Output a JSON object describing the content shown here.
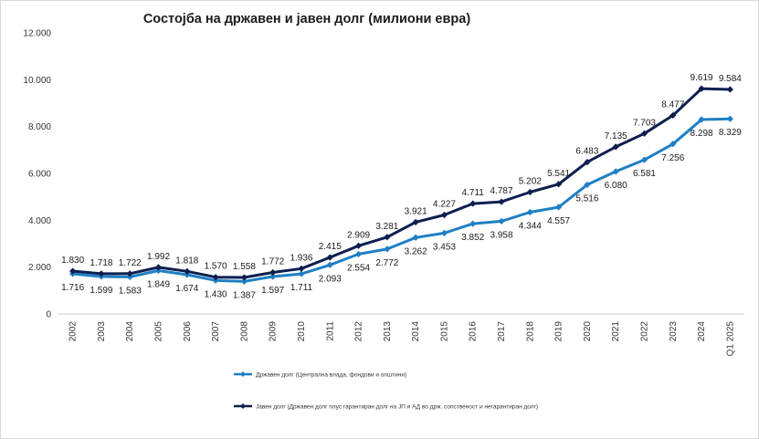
{
  "chart_data": {
    "type": "line",
    "title": "Состојба на државен и јавен долг (милиони евра)",
    "categories": [
      "2002",
      "2003",
      "2004",
      "2005",
      "2006",
      "2007",
      "2008",
      "2009",
      "2010",
      "2011",
      "2012",
      "2013",
      "2014",
      "2015",
      "2016",
      "2017",
      "2018",
      "2019",
      "2020",
      "2021",
      "2022",
      "2023",
      "2024",
      "Q1 2025"
    ],
    "ylim": [
      0,
      12000
    ],
    "yticks": [
      0,
      2000,
      4000,
      6000,
      8000,
      10000,
      12000
    ],
    "ytick_labels": [
      "0",
      "2.000",
      "4.000",
      "6.000",
      "8.000",
      "10.000",
      "12.000"
    ],
    "grid": false,
    "legend_position": "bottom",
    "series": [
      {
        "name": "Државен долг (Централна влада, фондови и општини)",
        "color": "#1f7fc4",
        "values": [
          1716,
          1599,
          1583,
          1849,
          1674,
          1430,
          1387,
          1597,
          1711,
          2093,
          2554,
          2772,
          3262,
          3453,
          3852,
          3958,
          4344,
          4557,
          5516,
          6080,
          6581,
          7256,
          8298,
          8329
        ],
        "labels": [
          "1.716",
          "1.599",
          "1.583",
          "1.849",
          "1.674",
          "1.430",
          "1.387",
          "1.597",
          "1.711",
          "2.093",
          "2.554",
          "2.772",
          "3.262",
          "3.453",
          "3.852",
          "3.958",
          "4.344",
          "4.557",
          "5.516",
          "6.080",
          "6.581",
          "7.256",
          "8.298",
          "8.329"
        ]
      },
      {
        "name": "Јавен долг (Државен долг плус гарантиран долг на ЈП и АД во држ. сопственост и негарантиран долг)",
        "color": "#0d1f4f",
        "values": [
          1830,
          1718,
          1722,
          1992,
          1818,
          1570,
          1558,
          1772,
          1936,
          2415,
          2909,
          3281,
          3921,
          4227,
          4711,
          4787,
          5202,
          5541,
          6483,
          7135,
          7703,
          8477,
          9619,
          9584
        ],
        "labels": [
          "1.830",
          "1.718",
          "1.722",
          "1.992",
          "1.818",
          "1.570",
          "1.558",
          "1.772",
          "1.936",
          "2.415",
          "2.909",
          "3.281",
          "3.921",
          "4.227",
          "4.711",
          "4.787",
          "5.202",
          "5.541",
          "6.483",
          "7.135",
          "7.703",
          "8.477",
          "9.619",
          "9.584"
        ]
      }
    ]
  }
}
